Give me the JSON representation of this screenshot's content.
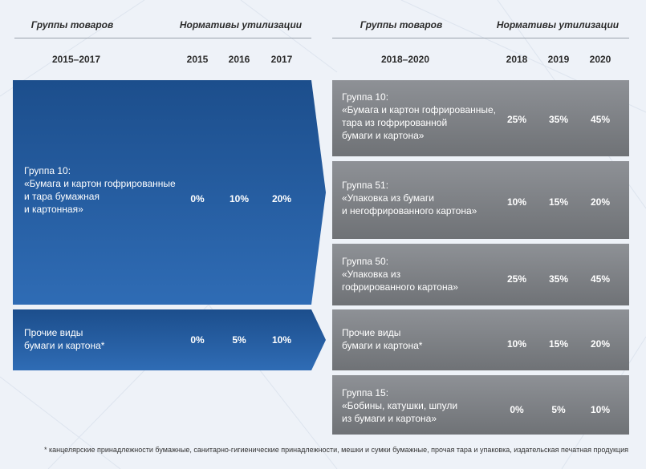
{
  "left": {
    "header_group": "Группы товаров",
    "header_norms": "Нормативы утилизации",
    "period": "2015–2017",
    "years": [
      "2015",
      "2016",
      "2017"
    ],
    "rows": [
      {
        "label": "Группа 10:\n«Бумага и картон гофрированные\nи тара бумажная\nи картонная»",
        "values": [
          "0%",
          "10%",
          "20%"
        ]
      },
      {
        "label": "Прочие виды\nбумаги и картона*",
        "values": [
          "0%",
          "5%",
          "10%"
        ]
      }
    ]
  },
  "right": {
    "header_group": "Группы товаров",
    "header_norms": "Нормативы утилизации",
    "period": "2018–2020",
    "years": [
      "2018",
      "2019",
      "2020"
    ],
    "rows": [
      {
        "label": "Группа 10:\n«Бумага и картон гофрированные,\nтара из гофрированной\nбумаги и картона»",
        "values": [
          "25%",
          "35%",
          "45%"
        ]
      },
      {
        "label": "Группа 51:\n«Упаковка из бумаги\nи негофрированного картона»",
        "values": [
          "10%",
          "15%",
          "20%"
        ]
      },
      {
        "label": "Группа 50:\n«Упаковка из\nгофрированного картона»",
        "values": [
          "25%",
          "35%",
          "45%"
        ]
      },
      {
        "label": "Прочие виды\nбумаги и картона*",
        "values": [
          "10%",
          "15%",
          "20%"
        ]
      },
      {
        "label": "Группа 15:\n«Бобины, катушки, шпули\nиз бумаги и картона»",
        "values": [
          "0%",
          "5%",
          "10%"
        ]
      }
    ]
  },
  "footnote": "*  канцелярские принадлежности бумажные, санитарно-гигиенические принадлежности, мешки и сумки бумажные, прочая тара и упаковка, издательская печатная продукция",
  "colors": {
    "blue_dark": "#1c4e8c",
    "blue_light": "#2f6cb5",
    "gray": "#808387",
    "background": "#eef2f8"
  }
}
